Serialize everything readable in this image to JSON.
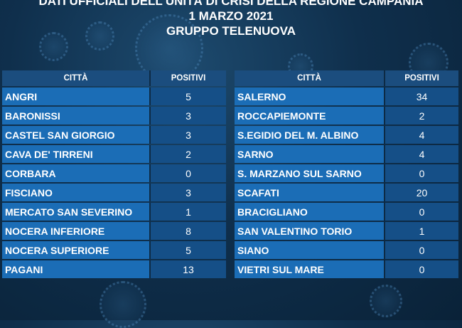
{
  "header": {
    "line1": "DATI UFFICIALI DELL'UNITÀ DI CRISI DELLA REGIONE CAMPANIA",
    "line2": "1 MARZO 2021",
    "line3": "GRUPPO TELENUOVA"
  },
  "columns": {
    "city": "CITTÀ",
    "positive": "POSITIVI"
  },
  "left_table": [
    {
      "city": "ANGRI",
      "positive": "5"
    },
    {
      "city": "BARONISSI",
      "positive": "3"
    },
    {
      "city": "CASTEL SAN GIORGIO",
      "positive": "3"
    },
    {
      "city": "CAVA DE' TIRRENI",
      "positive": "2"
    },
    {
      "city": "CORBARA",
      "positive": "0"
    },
    {
      "city": "FISCIANO",
      "positive": "3"
    },
    {
      "city": "MERCATO SAN SEVERINO",
      "positive": "1"
    },
    {
      "city": "NOCERA INFERIORE",
      "positive": "8"
    },
    {
      "city": "NOCERA SUPERIORE",
      "positive": "5"
    },
    {
      "city": "PAGANI",
      "positive": "13"
    }
  ],
  "right_table": [
    {
      "city": "SALERNO",
      "positive": "34"
    },
    {
      "city": "ROCCAPIEMONTE",
      "positive": "2"
    },
    {
      "city": "S.EGIDIO DEL M. ALBINO",
      "positive": "4"
    },
    {
      "city": "SARNO",
      "positive": "4"
    },
    {
      "city": "S. MARZANO SUL SARNO",
      "positive": "0"
    },
    {
      "city": "SCAFATI",
      "positive": "20"
    },
    {
      "city": "BRACIGLIANO",
      "positive": "0"
    },
    {
      "city": "SAN VALENTINO TORIO",
      "positive": "1"
    },
    {
      "city": "SIANO",
      "positive": "0"
    },
    {
      "city": "VIETRI SUL MARE",
      "positive": "0"
    }
  ],
  "colors": {
    "background": "#0f2f4c",
    "city_cell": "#1b6db6",
    "positive_cell": "#154f87",
    "header_cell": "#1b4d7e"
  }
}
